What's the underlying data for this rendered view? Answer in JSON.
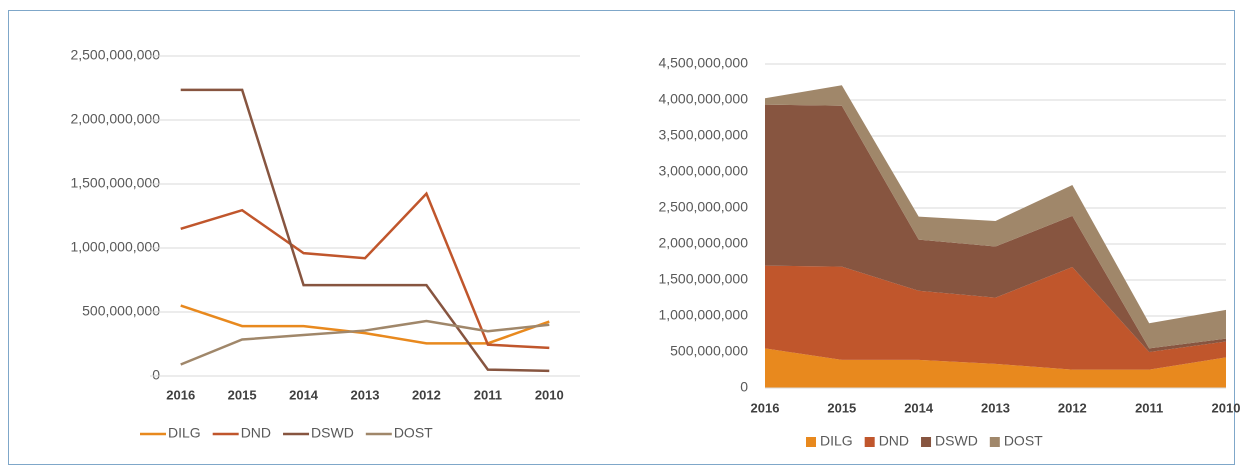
{
  "chart_data": [
    {
      "type": "line",
      "categories": [
        "2016",
        "2015",
        "2014",
        "2013",
        "2012",
        "2011",
        "2010"
      ],
      "series": [
        {
          "name": "DILG",
          "color": "#e8891e",
          "values": [
            550000000,
            390000000,
            390000000,
            335000000,
            255000000,
            255000000,
            425000000
          ]
        },
        {
          "name": "DND",
          "color": "#c0562c",
          "values": [
            1150000000,
            1295000000,
            960000000,
            920000000,
            1425000000,
            245000000,
            220000000
          ]
        },
        {
          "name": "DSWD",
          "color": "#875540",
          "values": [
            2235000000,
            2235000000,
            710000000,
            710000000,
            710000000,
            50000000,
            40000000
          ]
        },
        {
          "name": "DOST",
          "color": "#a0876a",
          "values": [
            90000000,
            285000000,
            320000000,
            355000000,
            430000000,
            350000000,
            400000000
          ]
        }
      ],
      "ylim": [
        0,
        2500000000
      ],
      "yticks": [
        0,
        {
          "value": 500000000,
          "label": "500,000,000"
        },
        {
          "value": 1000000000,
          "label": "1,000,000,000"
        },
        {
          "value": 1500000000,
          "label": "1,500,000,000"
        },
        {
          "value": 2000000000,
          "label": "2,000,000,000"
        },
        {
          "value": 2500000000,
          "label": "2,500,000,000"
        }
      ],
      "grid": true,
      "legend": "bottom"
    },
    {
      "type": "stacked_area",
      "categories": [
        "2016",
        "2015",
        "2014",
        "2013",
        "2012",
        "2011",
        "2010"
      ],
      "series": [
        {
          "name": "DILG",
          "color": "#e8891e",
          "values": [
            550000000,
            390000000,
            390000000,
            335000000,
            255000000,
            255000000,
            425000000
          ]
        },
        {
          "name": "DND",
          "color": "#c0562c",
          "values": [
            1150000000,
            1295000000,
            960000000,
            920000000,
            1425000000,
            245000000,
            220000000
          ]
        },
        {
          "name": "DSWD",
          "color": "#875540",
          "values": [
            2235000000,
            2235000000,
            710000000,
            710000000,
            710000000,
            50000000,
            40000000
          ]
        },
        {
          "name": "DOST",
          "color": "#a0876a",
          "values": [
            90000000,
            285000000,
            320000000,
            355000000,
            430000000,
            350000000,
            400000000
          ]
        }
      ],
      "ylim": [
        0,
        4500000000
      ],
      "yticks": [
        0,
        {
          "value": 500000000,
          "label": "500,000,000"
        },
        {
          "value": 1000000000,
          "label": "1,000,000,000"
        },
        {
          "value": 1500000000,
          "label": "1,500,000,000"
        },
        {
          "value": 2000000000,
          "label": "2,000,000,000"
        },
        {
          "value": 2500000000,
          "label": "2,500,000,000"
        },
        {
          "value": 3000000000,
          "label": "3,000,000,000"
        },
        {
          "value": 3500000000,
          "label": "3,500,000,000"
        },
        {
          "value": 4000000000,
          "label": "4,000,000,000"
        },
        {
          "value": 4500000000,
          "label": "4,500,000,000"
        }
      ],
      "grid": true,
      "legend": "bottom"
    }
  ]
}
